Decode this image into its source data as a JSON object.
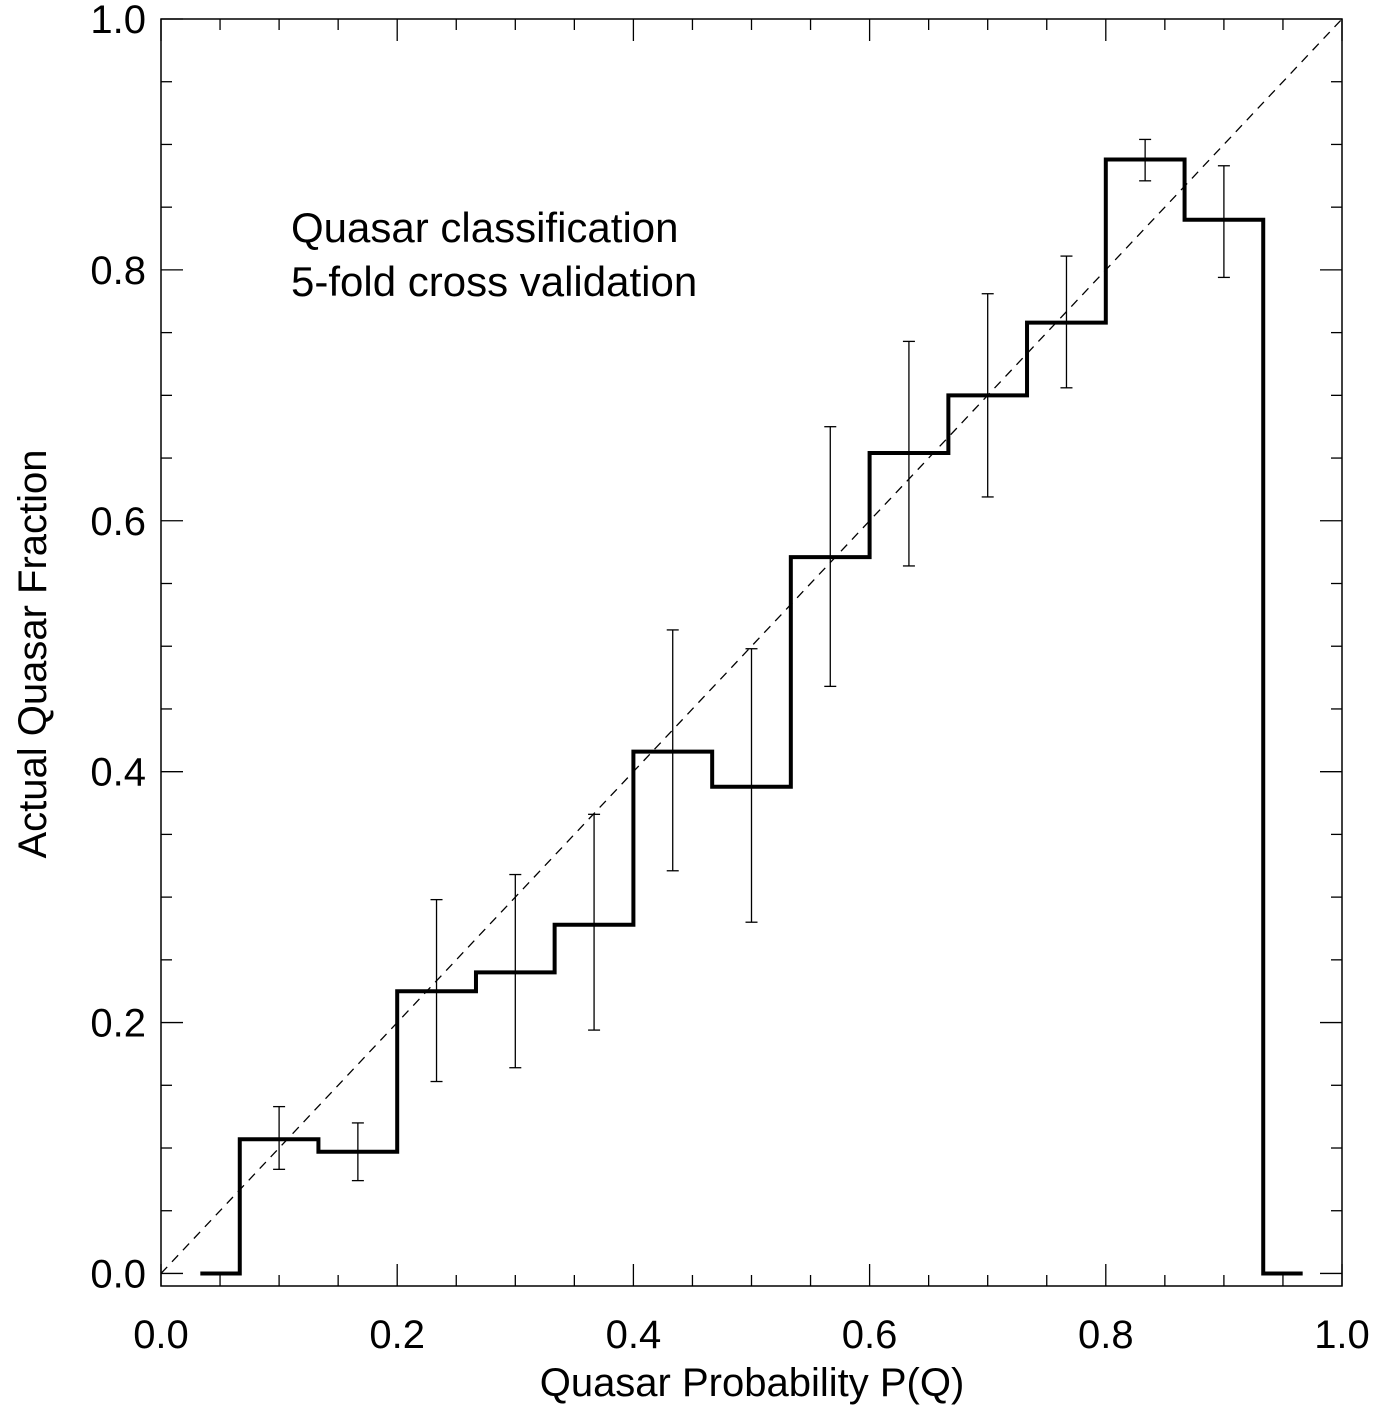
{
  "chart_data": {
    "type": "line",
    "subtype": "step-histogram-with-error-bars",
    "annotation": [
      "Quasar classification",
      "5-fold cross validation"
    ],
    "xlabel": "Quasar Probability P(Q)",
    "ylabel": "Actual Quasar Fraction",
    "xlim": [
      0.0,
      1.0
    ],
    "ylim": [
      -0.01,
      1.0
    ],
    "x_ticks": [
      0.0,
      0.2,
      0.4,
      0.6,
      0.8,
      1.0
    ],
    "x_tick_labels": [
      "0.0",
      "0.2",
      "0.4",
      "0.6",
      "0.8",
      "1.0"
    ],
    "y_ticks": [
      0.0,
      0.2,
      0.4,
      0.6,
      0.8,
      1.0
    ],
    "y_tick_labels": [
      "0.0",
      "0.2",
      "0.4",
      "0.6",
      "0.8",
      "1.0"
    ],
    "x_minor_step": 0.05,
    "y_minor_step": 0.05,
    "grid": false,
    "bins": [
      {
        "lo": 0.0333,
        "hi": 0.0667,
        "y": 0.0
      },
      {
        "lo": 0.0667,
        "hi": 0.1333,
        "y": 0.107
      },
      {
        "lo": 0.1333,
        "hi": 0.2,
        "y": 0.097
      },
      {
        "lo": 0.2,
        "hi": 0.2667,
        "y": 0.225
      },
      {
        "lo": 0.2667,
        "hi": 0.3333,
        "y": 0.24
      },
      {
        "lo": 0.3333,
        "hi": 0.4,
        "y": 0.278
      },
      {
        "lo": 0.4,
        "hi": 0.4667,
        "y": 0.416
      },
      {
        "lo": 0.4667,
        "hi": 0.5333,
        "y": 0.388
      },
      {
        "lo": 0.5333,
        "hi": 0.6,
        "y": 0.571
      },
      {
        "lo": 0.6,
        "hi": 0.6667,
        "y": 0.654
      },
      {
        "lo": 0.6667,
        "hi": 0.7333,
        "y": 0.7
      },
      {
        "lo": 0.7333,
        "hi": 0.8,
        "y": 0.758
      },
      {
        "lo": 0.8,
        "hi": 0.8667,
        "y": 0.888
      },
      {
        "lo": 0.8667,
        "hi": 0.9333,
        "y": 0.84
      },
      {
        "lo": 0.9333,
        "hi": 0.9667,
        "y": 0.0
      }
    ],
    "error_bars": [
      {
        "x": 0.1,
        "y": 0.107,
        "lo": 0.083,
        "hi": 0.133
      },
      {
        "x": 0.1667,
        "y": 0.097,
        "lo": 0.074,
        "hi": 0.12
      },
      {
        "x": 0.2333,
        "y": 0.225,
        "lo": 0.153,
        "hi": 0.298
      },
      {
        "x": 0.3,
        "y": 0.24,
        "lo": 0.164,
        "hi": 0.318
      },
      {
        "x": 0.3667,
        "y": 0.278,
        "lo": 0.194,
        "hi": 0.366
      },
      {
        "x": 0.4333,
        "y": 0.416,
        "lo": 0.321,
        "hi": 0.513
      },
      {
        "x": 0.5,
        "y": 0.388,
        "lo": 0.28,
        "hi": 0.498
      },
      {
        "x": 0.5667,
        "y": 0.571,
        "lo": 0.468,
        "hi": 0.675
      },
      {
        "x": 0.6333,
        "y": 0.654,
        "lo": 0.564,
        "hi": 0.743
      },
      {
        "x": 0.7,
        "y": 0.7,
        "lo": 0.619,
        "hi": 0.781
      },
      {
        "x": 0.7667,
        "y": 0.758,
        "lo": 0.706,
        "hi": 0.811
      },
      {
        "x": 0.8333,
        "y": 0.888,
        "lo": 0.871,
        "hi": 0.904
      },
      {
        "x": 0.9,
        "y": 0.84,
        "lo": 0.794,
        "hi": 0.883
      }
    ],
    "reference_line": {
      "style": "dashed",
      "from": [
        0.0,
        0.0
      ],
      "to": [
        1.0,
        1.0
      ]
    },
    "colors": {
      "line": "#000000",
      "background": "#ffffff"
    }
  }
}
